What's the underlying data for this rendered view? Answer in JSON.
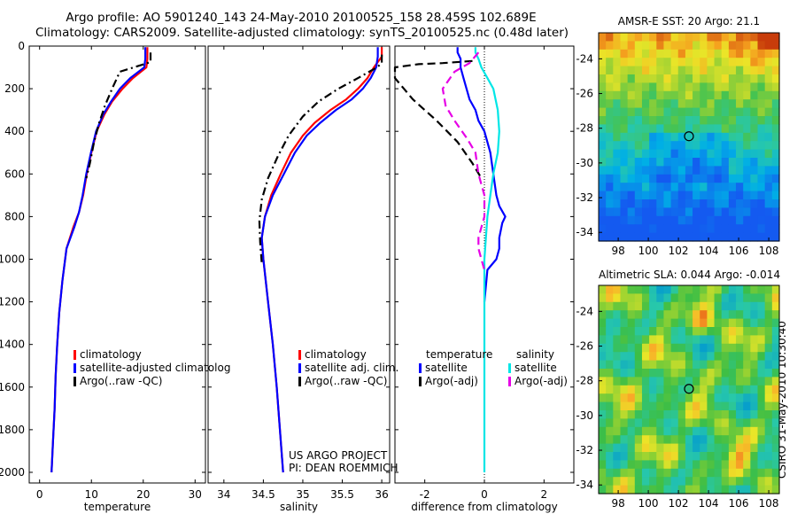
{
  "header": {
    "line1": "Argo profile: AO 5901240_143 24-May-2010 20100525_158 28.459S 102.689E",
    "line2": "Climatology: CARS2009. Satellite-adjusted climatology: synTS_20100525.nc (0.48d later)"
  },
  "side_label": "CSIRO 31-May-2010 10:30:40",
  "credits": [
    "US ARGO PROJECT",
    "PI: DEAN ROEMMICH"
  ],
  "colors": {
    "red": "#ff0000",
    "blue": "#0000ff",
    "black": "#000000",
    "cyan": "#00e6e6",
    "magenta": "#e600e6"
  },
  "chart_data": [
    {
      "type": "line",
      "id": "temperature",
      "xlabel": "temperature",
      "xlim": [
        -2,
        32
      ],
      "ylim": [
        0,
        2050
      ],
      "y_reversed": true,
      "xticks": [
        0,
        10,
        20,
        30
      ],
      "yticks": [
        0,
        200,
        400,
        600,
        800,
        1000,
        1200,
        1400,
        1600,
        1800,
        2000
      ],
      "legend": [
        "climatology",
        "satellite-adjusted climatolog",
        "Argo(..raw -QC)"
      ],
      "series": [
        {
          "name": "climatology",
          "color": "red",
          "dash": "none",
          "x": [
            20.8,
            20.8,
            20.6,
            18,
            16,
            14,
            12.5,
            11,
            10,
            9.1,
            8.4,
            7.6,
            6.5,
            5.2,
            4.4,
            3.8,
            3.4,
            3.1,
            2.9,
            2.6,
            2.3
          ],
          "y": [
            5,
            60,
            100,
            150,
            200,
            260,
            320,
            400,
            500,
            600,
            700,
            780,
            850,
            950,
            1100,
            1250,
            1400,
            1550,
            1700,
            1850,
            2000
          ]
        },
        {
          "name": "satellite-adjusted climatology",
          "color": "blue",
          "dash": "none",
          "x": [
            20.4,
            20.4,
            20.2,
            17.5,
            15.5,
            13.8,
            12.3,
            10.9,
            9.9,
            9,
            8.3,
            7.6,
            6.7,
            5.2,
            4.4,
            3.8,
            3.4,
            3.1,
            2.9,
            2.6,
            2.3
          ],
          "y": [
            5,
            60,
            100,
            150,
            200,
            260,
            320,
            400,
            500,
            600,
            700,
            780,
            850,
            950,
            1100,
            1250,
            1400,
            1550,
            1700,
            1850,
            2000
          ]
        },
        {
          "name": "Argo(..raw -QC)",
          "color": "black",
          "dash": "dashdot",
          "x": [
            21.4,
            21.4,
            20.8,
            15.5,
            14,
            12.6,
            11.5,
            10.5,
            9.7,
            9
          ],
          "y": [
            30,
            75,
            80,
            120,
            200,
            280,
            360,
            450,
            550,
            620
          ]
        }
      ]
    },
    {
      "type": "line",
      "id": "salinity",
      "xlabel": "salinity",
      "xlim": [
        33.8,
        36.1
      ],
      "ylim": [
        0,
        2050
      ],
      "y_reversed": true,
      "xticks": [
        34,
        34.5,
        35,
        35.5,
        36
      ],
      "yticks": [
        0,
        200,
        400,
        600,
        800,
        1000,
        1200,
        1400,
        1600,
        1800,
        2000
      ],
      "legend": [
        "climatology",
        "satellite adj. clim.",
        "Argo(..raw -QC)"
      ],
      "series": [
        {
          "name": "climatology",
          "color": "red",
          "dash": "none",
          "x": [
            36.0,
            36.0,
            35.9,
            35.82,
            35.7,
            35.55,
            35.35,
            35.15,
            35.0,
            34.85,
            34.72,
            34.6,
            34.52,
            34.48,
            34.5,
            34.56,
            34.62,
            34.67,
            34.71,
            34.73,
            34.75
          ],
          "y": [
            5,
            50,
            100,
            150,
            200,
            250,
            300,
            360,
            420,
            500,
            600,
            700,
            800,
            900,
            1000,
            1200,
            1400,
            1600,
            1800,
            1900,
            2000
          ]
        },
        {
          "name": "satellite adj. clim.",
          "color": "blue",
          "dash": "none",
          "x": [
            35.95,
            35.95,
            35.93,
            35.86,
            35.76,
            35.62,
            35.42,
            35.22,
            35.05,
            34.9,
            34.76,
            34.62,
            34.52,
            34.48,
            34.5,
            34.56,
            34.62,
            34.67,
            34.71,
            34.73,
            34.75
          ],
          "y": [
            5,
            50,
            100,
            150,
            200,
            250,
            300,
            360,
            420,
            500,
            600,
            700,
            800,
            900,
            1000,
            1200,
            1400,
            1600,
            1800,
            1900,
            2000
          ]
        },
        {
          "name": "Argo(..raw -QC)",
          "color": "black",
          "dash": "dashdot",
          "x": [
            36.0,
            36.0,
            35.94,
            35.7,
            35.45,
            35.2,
            35.0,
            34.82,
            34.68,
            34.56,
            34.48,
            34.45,
            34.46,
            34.48
          ],
          "y": [
            40,
            80,
            100,
            150,
            200,
            260,
            330,
            420,
            520,
            620,
            720,
            820,
            920,
            1020
          ]
        }
      ]
    },
    {
      "type": "line",
      "id": "difference",
      "xlabel": "difference from climatology",
      "xlim": [
        -3,
        3
      ],
      "ylim": [
        0,
        2050
      ],
      "y_reversed": true,
      "xticks": [
        -2,
        0,
        2
      ],
      "yticks": [
        0,
        200,
        400,
        600,
        800,
        1000,
        1200,
        1400,
        1600,
        1800,
        2000
      ],
      "legend_groups": [
        {
          "title": "temperature",
          "items": [
            "satellite",
            "Argo(-adj)"
          ]
        },
        {
          "title": "salinity",
          "items": [
            "satellite",
            "Argo(-adj)"
          ]
        }
      ],
      "series": [
        {
          "name": "temperature satellite",
          "color": "blue",
          "dash": "none",
          "x": [
            -0.9,
            -0.9,
            -0.8,
            -0.8,
            -0.7,
            -0.6,
            -0.5,
            -0.3,
            -0.2,
            0,
            0.2,
            0.3,
            0.4,
            0.5,
            0.7,
            0.6,
            0.5,
            0.5,
            0.4,
            0.1,
            0
          ],
          "y": [
            5,
            30,
            60,
            100,
            150,
            200,
            250,
            300,
            350,
            400,
            500,
            600,
            700,
            750,
            800,
            830,
            900,
            950,
            1000,
            1050,
            1200
          ]
        },
        {
          "name": "temperature Argo(-adj)",
          "color": "black",
          "dash": "dashed",
          "x": [
            -0.4,
            -1.4,
            -2.2,
            -3.0,
            -3.0,
            -2.4,
            -1.6,
            -0.9,
            -0.4,
            -0.1
          ],
          "y": [
            70,
            80,
            85,
            100,
            150,
            250,
            350,
            450,
            550,
            620
          ]
        },
        {
          "name": "salinity satellite",
          "color": "cyan",
          "dash": "none",
          "x": [
            -0.3,
            -0.3,
            -0.2,
            -0.1,
            0.1,
            0.3,
            0.45,
            0.5,
            0.45,
            0.3,
            0.2,
            0.1,
            0.05,
            0.0,
            0.0,
            0.0
          ],
          "y": [
            5,
            30,
            60,
            100,
            150,
            200,
            300,
            400,
            500,
            600,
            700,
            800,
            900,
            1000,
            1500,
            2000
          ]
        },
        {
          "name": "salinity Argo(-adj)",
          "color": "magenta",
          "dash": "dashed",
          "x": [
            -0.2,
            -0.5,
            -1.0,
            -1.4,
            -1.3,
            -1.0,
            -0.6,
            -0.3,
            -0.2,
            0,
            0,
            -0.1,
            -0.2,
            -0.2,
            -0.1,
            0
          ],
          "y": [
            30,
            80,
            120,
            200,
            280,
            350,
            430,
            500,
            600,
            700,
            800,
            850,
            900,
            950,
            1000,
            1050
          ]
        }
      ]
    },
    {
      "type": "heatmap",
      "id": "sst-map",
      "title": "AMSR-E SST: 20 Argo: 21.1",
      "xticks": [
        98,
        100,
        102,
        104,
        106,
        108
      ],
      "yticks": [
        -24,
        -26,
        -28,
        -30,
        -32,
        -34
      ],
      "xlim": [
        96.7,
        108.7
      ],
      "ylim": [
        -34.5,
        -22.5
      ],
      "marker": {
        "lon": 102.7,
        "lat": -28.46
      }
    },
    {
      "type": "heatmap",
      "id": "sla-map",
      "title": "Altimetric SLA: 0.044 Argo: -0.014",
      "xticks": [
        98,
        100,
        102,
        104,
        106,
        108
      ],
      "yticks": [
        -24,
        -26,
        -28,
        -30,
        -32,
        -34
      ],
      "xlim": [
        96.7,
        108.7
      ],
      "ylim": [
        -34.5,
        -22.5
      ],
      "marker": {
        "lon": 102.7,
        "lat": -28.46
      }
    }
  ]
}
